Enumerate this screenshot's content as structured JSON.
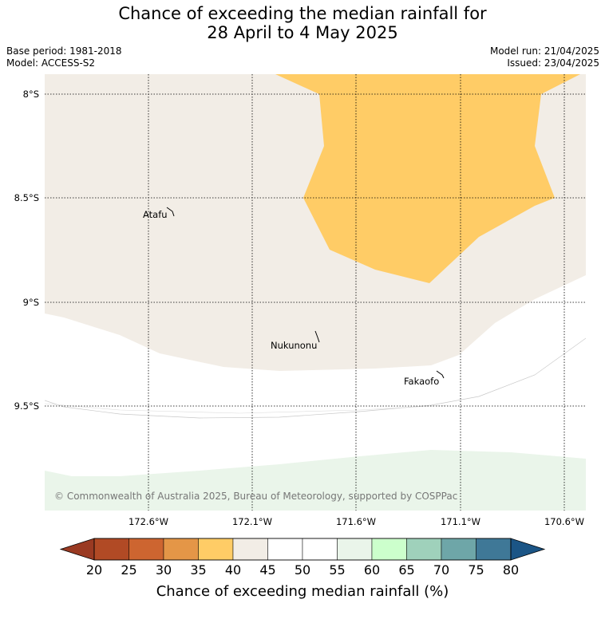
{
  "title_line1": "Chance of exceeding the median rainfall for",
  "title_line2": "28 April to 4 May 2025",
  "base_period": "Base period: 1981-2018",
  "model": "Model: ACCESS-S2",
  "model_run": "Model run: 21/04/2025",
  "issued": "Issued: 23/04/2025",
  "lat_labels": [
    "8°S",
    "8.5°S",
    "9°S",
    "9.5°S"
  ],
  "lon_labels": [
    "172.6°W",
    "172.1°W",
    "171.6°W",
    "171.1°W",
    "170.6°W"
  ],
  "places": {
    "atafu": "Atafu",
    "nukunonu": "Nukunonu",
    "fakaofo": "Fakaofo"
  },
  "copyright": "© Commonwealth of Australia 2025, Bureau of Meteorology, supported by COSPPac",
  "colorbar": {
    "ticks": [
      "20",
      "25",
      "30",
      "35",
      "40",
      "45",
      "50",
      "55",
      "60",
      "65",
      "70",
      "75",
      "80"
    ],
    "label": "Chance of exceeding median rainfall (%)",
    "colors": [
      "#9a3a22",
      "#b14a25",
      "#cd6530",
      "#e49647",
      "#ffcc66",
      "#f2ede6",
      "#ffffff",
      "#ffffff",
      "#eaf5ea",
      "#ccffcc",
      "#9fd1bb",
      "#6ea6a8",
      "#3f7897",
      "#1b5586"
    ]
  }
}
